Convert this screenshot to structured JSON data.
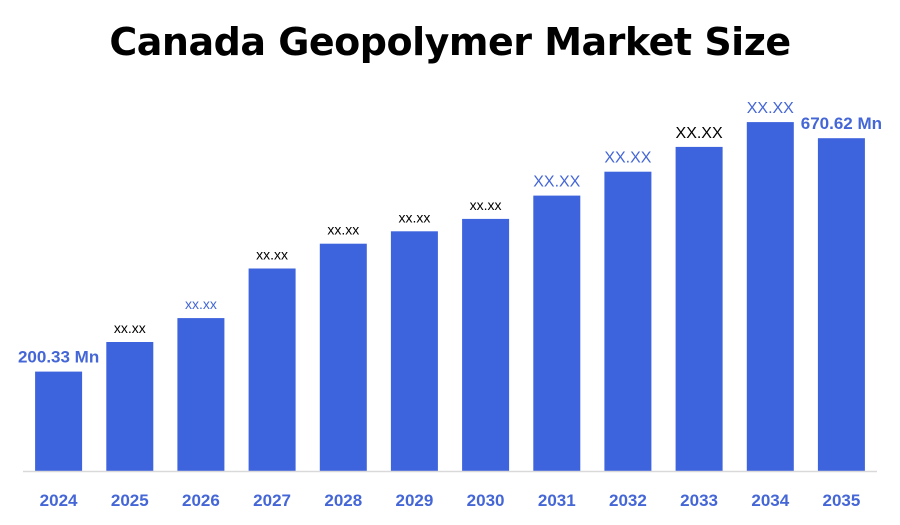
{
  "title": "Canada Geopolymer Market Size",
  "colors": {
    "bar": "#3D63DD",
    "label_blue": "#4466D6",
    "label_black": "#000000",
    "axis": "#D9D9D9"
  },
  "chart_data": {
    "type": "bar",
    "title": "Canada Geopolymer Market Size",
    "xlabel": "",
    "ylabel": "",
    "categories": [
      "2024",
      "2025",
      "2026",
      "2027",
      "2028",
      "2029",
      "2030",
      "2031",
      "2032",
      "2033",
      "2034",
      "2035"
    ],
    "values": [
      200.33,
      260,
      308,
      408,
      458,
      483,
      508,
      555,
      603,
      653,
      703,
      670.62
    ],
    "data_labels": [
      "200.33 Mn",
      "xx.xx",
      "xx.xx",
      "xx.xx",
      "xx.xx",
      "xx.xx",
      "xx.xx",
      "XX.XX",
      "XX.XX",
      "XX.XX",
      "XX.XX",
      "670.62 Mn"
    ],
    "data_label_colors": [
      "#4466D6",
      "#000000",
      "#4466D6",
      "#000000",
      "#000000",
      "#000000",
      "#000000",
      "#4466D6",
      "#4466D6",
      "#000000",
      "#4466D6",
      "#4466D6"
    ],
    "ylim": [
      0,
      1000
    ],
    "grid": false,
    "legend": "none"
  }
}
